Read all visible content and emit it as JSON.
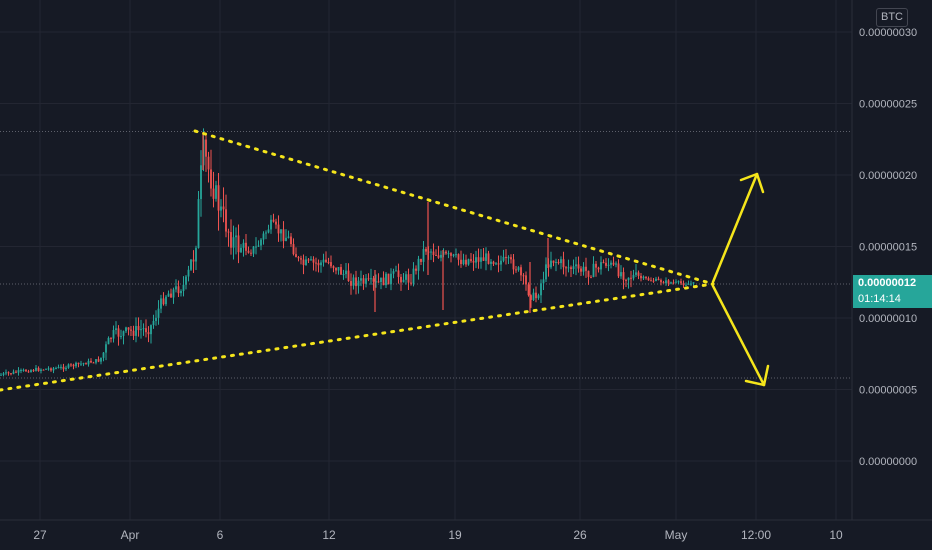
{
  "currency_label": "BTC",
  "current_price_label": "0.00000012",
  "countdown_label": "01:14:14",
  "colors": {
    "background": "#161a25",
    "up": "#26a69a",
    "down": "#ef5350",
    "trendline": "#f5e51b",
    "axis_text": "#b2b5be",
    "grid": "#232632"
  },
  "chart_data": {
    "type": "candlestick",
    "x_axis": {
      "ticks": [
        "27",
        "Apr",
        "6",
        "12",
        "19",
        "26",
        "May",
        "12:00",
        "10"
      ]
    },
    "y_axis": {
      "ticks": [
        "0.00000000",
        "0.00000005",
        "0.00000010",
        "0.00000015",
        "0.00000020",
        "0.00000025",
        "0.00000030"
      ],
      "range": [
        0.0,
        3e-07
      ]
    },
    "approximate_price_path": [
      {
        "x": "27",
        "y": 6.1e-08
      },
      {
        "x": "Apr",
        "y": 8.5e-08
      },
      {
        "x": "6",
        "y": 2.3e-07
      },
      {
        "x": "12",
        "y": 1.3e-07
      },
      {
        "x": "19",
        "y": 1.55e-07
      },
      {
        "x": "26",
        "y": 1.25e-07
      },
      {
        "x": "May",
        "y": 1.23e-07
      }
    ],
    "current_price": 1.2e-07,
    "annotations": [
      {
        "type": "descending-trendline",
        "from": 2.3e-07,
        "to": 1.18e-07
      },
      {
        "type": "ascending-trendline",
        "from": 5.1e-08,
        "to": 1.18e-07
      },
      {
        "type": "arrow",
        "direction": "up"
      },
      {
        "type": "arrow",
        "direction": "down"
      }
    ]
  }
}
